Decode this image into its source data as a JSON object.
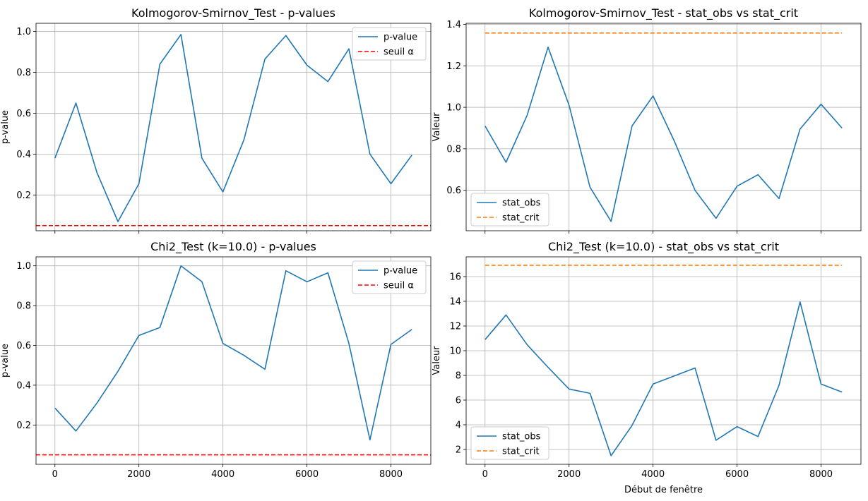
{
  "chart_data": [
    {
      "type": "line",
      "title": "Kolmogorov-Smirnov_Test - p-values",
      "xlabel": "",
      "ylabel": "p-value",
      "xlim": [
        -450,
        8950
      ],
      "ylim": [
        0.025,
        1.04
      ],
      "xticks": [
        0,
        2000,
        4000,
        6000,
        8000
      ],
      "xtick_labels": [
        "",
        "",
        "",
        "",
        ""
      ],
      "yticks": [
        0.2,
        0.4,
        0.6,
        0.8,
        1.0
      ],
      "ytick_labels": [
        "0.2",
        "0.4",
        "0.6",
        "0.8",
        "1.0"
      ],
      "grid": true,
      "legend": "upper right",
      "x": [
        0,
        500,
        1000,
        1500,
        2000,
        2500,
        3000,
        3500,
        4000,
        4500,
        5000,
        5500,
        6000,
        6500,
        7000,
        7500,
        8000,
        8500
      ],
      "series": [
        {
          "name": "p-value",
          "style": "solid",
          "color": "#1f77b4",
          "values": [
            0.38,
            0.65,
            0.31,
            0.07,
            0.255,
            0.84,
            0.985,
            0.38,
            0.215,
            0.47,
            0.865,
            0.98,
            0.835,
            0.755,
            0.915,
            0.4,
            0.255,
            0.395
          ]
        },
        {
          "name": "seuil α",
          "style": "dashed",
          "color": "#ff0000",
          "hline": 0.05
        }
      ]
    },
    {
      "type": "line",
      "title": "Kolmogorov-Smirnov_Test - stat_obs vs stat_crit",
      "xlabel": "",
      "ylabel": "Valeur",
      "xlim": [
        -450,
        8950
      ],
      "ylim": [
        0.405,
        1.405
      ],
      "xticks": [
        0,
        2000,
        4000,
        6000,
        8000
      ],
      "xtick_labels": [
        "",
        "",
        "",
        "",
        ""
      ],
      "yticks": [
        0.6,
        0.8,
        1.0,
        1.2,
        1.4
      ],
      "ytick_labels": [
        "0.6",
        "0.8",
        "1.0",
        "1.2",
        "1.4"
      ],
      "grid": true,
      "legend": "lower left",
      "x": [
        0,
        500,
        1000,
        1500,
        2000,
        2500,
        3000,
        3500,
        4000,
        4500,
        5000,
        5500,
        6000,
        6500,
        7000,
        7500,
        8000,
        8500
      ],
      "series": [
        {
          "name": "stat_obs",
          "style": "solid",
          "color": "#1f77b4",
          "values": [
            0.91,
            0.735,
            0.96,
            1.29,
            1.01,
            0.615,
            0.45,
            0.91,
            1.055,
            0.84,
            0.6,
            0.465,
            0.62,
            0.675,
            0.56,
            0.895,
            1.015,
            0.9
          ]
        },
        {
          "name": "stat_crit",
          "style": "dashed",
          "color": "#ff7f0e",
          "values": [
            1.358,
            1.358,
            1.358,
            1.358,
            1.358,
            1.358,
            1.358,
            1.358,
            1.358,
            1.358,
            1.358,
            1.358,
            1.358,
            1.358,
            1.358,
            1.358,
            1.358,
            1.358
          ]
        }
      ]
    },
    {
      "type": "line",
      "title": "Chi2_Test (k=10.0) - p-values",
      "xlabel": "",
      "ylabel": "p-value",
      "xlim": [
        -450,
        8950
      ],
      "ylim": [
        0.0025,
        1.045
      ],
      "xticks": [
        0,
        2000,
        4000,
        6000,
        8000
      ],
      "xtick_labels": [
        "0",
        "2000",
        "4000",
        "6000",
        "8000"
      ],
      "yticks": [
        0.2,
        0.4,
        0.6,
        0.8,
        1.0
      ],
      "ytick_labels": [
        "0.2",
        "0.4",
        "0.6",
        "0.8",
        "1.0"
      ],
      "grid": true,
      "legend": "upper right",
      "x": [
        0,
        500,
        1000,
        1500,
        2000,
        2500,
        3000,
        3500,
        4000,
        4500,
        5000,
        5500,
        6000,
        6500,
        7000,
        7500,
        8000,
        8500
      ],
      "series": [
        {
          "name": "p-value",
          "style": "solid",
          "color": "#1f77b4",
          "values": [
            0.285,
            0.17,
            0.31,
            0.47,
            0.65,
            0.69,
            1.0,
            0.92,
            0.61,
            0.55,
            0.48,
            0.975,
            0.92,
            0.965,
            0.61,
            0.125,
            0.605,
            0.68
          ]
        },
        {
          "name": "seuil α",
          "style": "dashed",
          "color": "#ff0000",
          "hline": 0.05
        }
      ]
    },
    {
      "type": "line",
      "title": "Chi2_Test (k=10.0) - stat_obs vs stat_crit",
      "xlabel": "Début de fenêtre",
      "ylabel": "Valeur",
      "xlim": [
        -450,
        8950
      ],
      "ylim": [
        0.8,
        17.6
      ],
      "xticks": [
        0,
        2000,
        4000,
        6000,
        8000
      ],
      "xtick_labels": [
        "0",
        "2000",
        "4000",
        "6000",
        "8000"
      ],
      "yticks": [
        2,
        4,
        6,
        8,
        10,
        12,
        14,
        16
      ],
      "ytick_labels": [
        "2",
        "4",
        "6",
        "8",
        "10",
        "12",
        "14",
        "16"
      ],
      "grid": true,
      "legend": "lower left",
      "x": [
        0,
        500,
        1000,
        1500,
        2000,
        2500,
        3000,
        3500,
        4000,
        4500,
        5000,
        5500,
        6000,
        6500,
        7000,
        7500,
        8000,
        8500
      ],
      "series": [
        {
          "name": "stat_obs",
          "style": "solid",
          "color": "#1f77b4",
          "values": [
            10.9,
            12.9,
            10.5,
            8.65,
            6.9,
            6.55,
            1.5,
            3.95,
            7.3,
            7.95,
            8.6,
            2.75,
            3.85,
            3.05,
            7.2,
            13.95,
            7.3,
            6.65
          ]
        },
        {
          "name": "stat_crit",
          "style": "dashed",
          "color": "#ff7f0e",
          "values": [
            16.92,
            16.92,
            16.92,
            16.92,
            16.92,
            16.92,
            16.92,
            16.92,
            16.92,
            16.92,
            16.92,
            16.92,
            16.92,
            16.92,
            16.92,
            16.92,
            16.92,
            16.92
          ]
        }
      ]
    }
  ]
}
